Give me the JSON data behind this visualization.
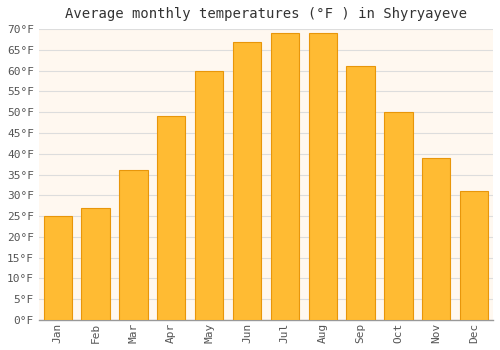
{
  "title": "Average monthly temperatures (°F ) in Shyryayeve",
  "months": [
    "Jan",
    "Feb",
    "Mar",
    "Apr",
    "May",
    "Jun",
    "Jul",
    "Aug",
    "Sep",
    "Oct",
    "Nov",
    "Dec"
  ],
  "values": [
    25,
    27,
    36,
    49,
    60,
    67,
    69,
    69,
    61,
    50,
    39,
    31
  ],
  "bar_color": "#FFBB33",
  "bar_edge_color": "#E8960A",
  "background_color": "#FFFFFF",
  "plot_bg_color": "#FFF8F0",
  "grid_color": "#DDDDDD",
  "ylim": [
    0,
    70
  ],
  "ytick_step": 5,
  "title_fontsize": 10,
  "tick_fontsize": 8,
  "font_family": "monospace"
}
